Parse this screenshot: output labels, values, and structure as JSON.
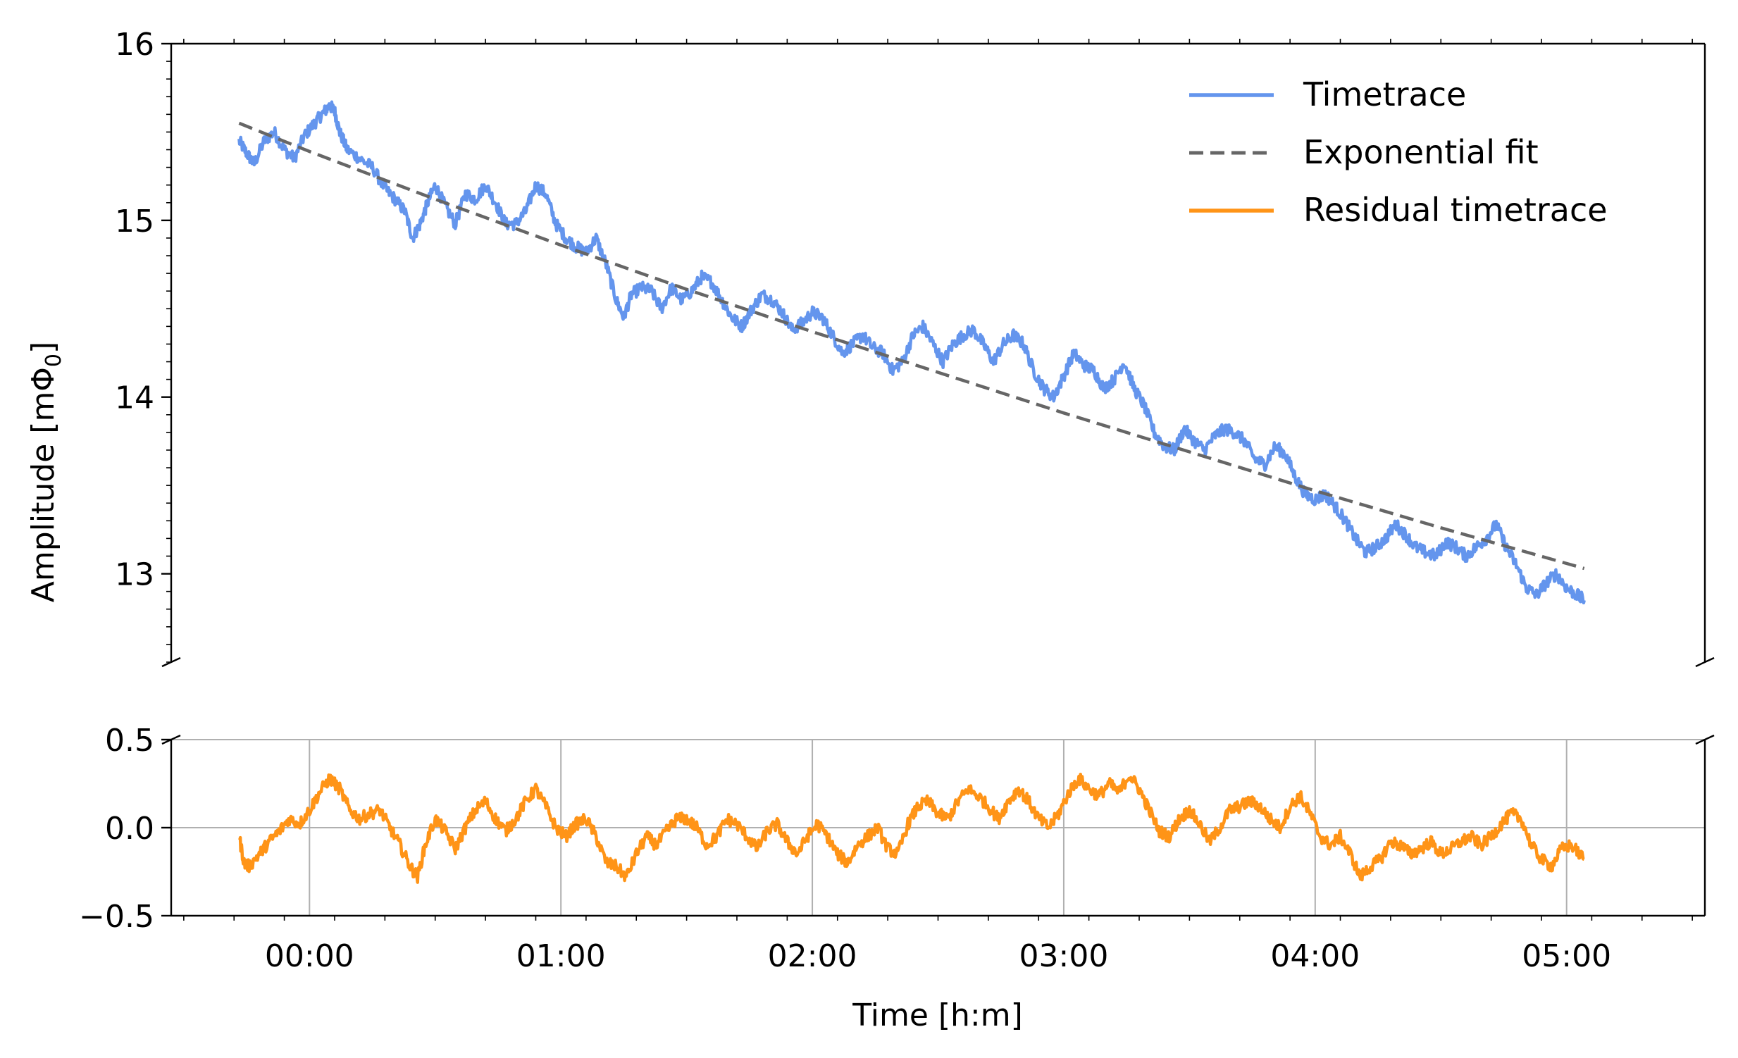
{
  "figure": {
    "colors": {
      "timetrace": "#6495ED",
      "fit": "#666666",
      "residual": "#FF9417",
      "grid": "#b0b0b0",
      "axis": "#000000"
    }
  },
  "chart_data": [
    {
      "type": "line",
      "panel": "top",
      "ylabel": "Amplitude [mΦ0]",
      "ylabel_parts": {
        "main": "Amplitude [mΦ",
        "sub": "0",
        "close": "]"
      },
      "ylim": [
        12.5,
        16.0
      ],
      "yticks": [
        13,
        14,
        15,
        16
      ],
      "ytick_labels": [
        "13",
        "14",
        "15",
        "16"
      ],
      "xlim": [
        "-00:33",
        "05:33"
      ],
      "grid": false,
      "legend_position": "top-right",
      "broken_axis": "bottom",
      "series": [
        {
          "name": "Timetrace",
          "style": "solid",
          "x_hours": [
            -0.28,
            -0.25,
            -0.22,
            -0.18,
            -0.14,
            -0.1,
            -0.06,
            -0.02,
            0.02,
            0.05,
            0.08,
            0.1,
            0.12,
            0.15,
            0.2,
            0.25,
            0.3,
            0.34,
            0.38,
            0.41,
            0.44,
            0.47,
            0.5,
            0.54,
            0.58,
            0.62,
            0.66,
            0.7,
            0.74,
            0.78,
            0.82,
            0.86,
            0.9,
            0.94,
            0.98,
            1.02,
            1.06,
            1.1,
            1.14,
            1.18,
            1.22,
            1.25,
            1.28,
            1.32,
            1.36,
            1.4,
            1.44,
            1.48,
            1.52,
            1.56,
            1.6,
            1.64,
            1.68,
            1.72,
            1.76,
            1.8,
            1.84,
            1.88,
            1.92,
            1.96,
            2.0,
            2.04,
            2.08,
            2.12,
            2.16,
            2.2,
            2.24,
            2.28,
            2.32,
            2.36,
            2.4,
            2.44,
            2.48,
            2.52,
            2.56,
            2.6,
            2.64,
            2.68,
            2.72,
            2.76,
            2.8,
            2.84,
            2.88,
            2.92,
            2.96,
            3.0,
            3.04,
            3.08,
            3.12,
            3.16,
            3.2,
            3.24,
            3.28,
            3.32,
            3.36,
            3.4,
            3.44,
            3.48,
            3.52,
            3.56,
            3.6,
            3.64,
            3.68,
            3.72,
            3.76,
            3.8,
            3.84,
            3.88,
            3.92,
            3.96,
            4.0,
            4.04,
            4.08,
            4.12,
            4.16,
            4.2,
            4.24,
            4.28,
            4.32,
            4.36,
            4.4,
            4.44,
            4.48,
            4.52,
            4.56,
            4.6,
            4.64,
            4.68,
            4.72,
            4.76,
            4.8,
            4.84,
            4.88,
            4.92,
            4.96,
            5.0,
            5.04,
            5.07
          ],
          "y": [
            15.45,
            15.38,
            15.32,
            15.45,
            15.5,
            15.4,
            15.35,
            15.48,
            15.55,
            15.6,
            15.65,
            15.62,
            15.5,
            15.4,
            15.35,
            15.3,
            15.18,
            15.12,
            15.05,
            14.9,
            14.98,
            15.1,
            15.2,
            15.08,
            14.98,
            15.15,
            15.12,
            15.2,
            15.1,
            14.98,
            14.98,
            15.05,
            15.2,
            15.15,
            14.98,
            14.9,
            14.85,
            14.82,
            14.9,
            14.75,
            14.55,
            14.45,
            14.58,
            14.62,
            14.6,
            14.5,
            14.62,
            14.55,
            14.6,
            14.68,
            14.65,
            14.55,
            14.45,
            14.4,
            14.5,
            14.58,
            14.55,
            14.48,
            14.38,
            14.42,
            14.48,
            14.45,
            14.35,
            14.25,
            14.3,
            14.35,
            14.28,
            14.25,
            14.15,
            14.2,
            14.35,
            14.4,
            14.3,
            14.2,
            14.3,
            14.35,
            14.38,
            14.3,
            14.2,
            14.3,
            14.35,
            14.3,
            14.15,
            14.05,
            14.0,
            14.12,
            14.25,
            14.18,
            14.15,
            14.05,
            14.1,
            14.2,
            14.05,
            13.95,
            13.8,
            13.72,
            13.7,
            13.82,
            13.75,
            13.7,
            13.78,
            13.82,
            13.8,
            13.75,
            13.65,
            13.62,
            13.72,
            13.68,
            13.55,
            13.45,
            13.42,
            13.45,
            13.38,
            13.3,
            13.2,
            13.12,
            13.15,
            13.2,
            13.28,
            13.22,
            13.15,
            13.12,
            13.1,
            13.18,
            13.15,
            13.1,
            13.15,
            13.2,
            13.28,
            13.15,
            13.05,
            12.92,
            12.88,
            12.95,
            13.0,
            12.92,
            12.88,
            12.85
          ],
          "noise": 0.035
        },
        {
          "name": "Exponential fit",
          "style": "dashed",
          "x_hours": [
            -0.28,
            0.0,
            0.5,
            1.0,
            1.5,
            2.0,
            2.5,
            3.0,
            3.5,
            4.0,
            4.5,
            5.07
          ],
          "y": [
            15.55,
            15.39,
            15.12,
            14.86,
            14.61,
            14.37,
            14.14,
            13.91,
            13.69,
            13.47,
            13.26,
            13.03
          ]
        }
      ]
    },
    {
      "type": "line",
      "panel": "bottom",
      "xlabel": "Time [h:m]",
      "ylim": [
        -0.5,
        0.5
      ],
      "yticks": [
        -0.5,
        0.0,
        0.5
      ],
      "ytick_labels": [
        "−0.5",
        "0.0",
        "0.5"
      ],
      "xlim": [
        "-00:33",
        "05:33"
      ],
      "xticks_hours": [
        0,
        1,
        2,
        3,
        4,
        5
      ],
      "xtick_labels": [
        "00:00",
        "01:00",
        "02:00",
        "03:00",
        "04:00",
        "05:00"
      ],
      "grid": true,
      "broken_axis": "top",
      "series": [
        {
          "name": "Residual timetrace",
          "style": "solid",
          "x_hours": [
            -0.28,
            -0.26,
            -0.24,
            -0.2,
            -0.16,
            -0.12,
            -0.08,
            -0.04,
            0.0,
            0.04,
            0.08,
            0.12,
            0.16,
            0.2,
            0.24,
            0.28,
            0.32,
            0.36,
            0.4,
            0.43,
            0.46,
            0.5,
            0.54,
            0.58,
            0.62,
            0.66,
            0.7,
            0.74,
            0.78,
            0.82,
            0.86,
            0.9,
            0.94,
            0.98,
            1.02,
            1.06,
            1.1,
            1.14,
            1.18,
            1.22,
            1.26,
            1.3,
            1.34,
            1.38,
            1.42,
            1.46,
            1.5,
            1.54,
            1.58,
            1.62,
            1.66,
            1.7,
            1.74,
            1.78,
            1.82,
            1.86,
            1.9,
            1.94,
            1.98,
            2.02,
            2.06,
            2.1,
            2.14,
            2.18,
            2.22,
            2.26,
            2.3,
            2.34,
            2.38,
            2.42,
            2.46,
            2.5,
            2.54,
            2.58,
            2.62,
            2.66,
            2.7,
            2.74,
            2.78,
            2.82,
            2.86,
            2.9,
            2.94,
            2.98,
            3.02,
            3.06,
            3.1,
            3.14,
            3.18,
            3.22,
            3.26,
            3.3,
            3.34,
            3.38,
            3.42,
            3.46,
            3.5,
            3.54,
            3.58,
            3.62,
            3.66,
            3.7,
            3.74,
            3.78,
            3.82,
            3.86,
            3.9,
            3.94,
            3.98,
            4.02,
            4.06,
            4.1,
            4.14,
            4.18,
            4.22,
            4.26,
            4.3,
            4.34,
            4.38,
            4.42,
            4.46,
            4.5,
            4.54,
            4.58,
            4.62,
            4.66,
            4.7,
            4.74,
            4.78,
            4.82,
            4.86,
            4.9,
            4.94,
            4.98,
            5.02,
            5.07
          ],
          "y": [
            -0.05,
            -0.2,
            -0.22,
            -0.15,
            -0.08,
            -0.02,
            0.05,
            0.02,
            0.1,
            0.2,
            0.28,
            0.22,
            0.1,
            0.05,
            0.08,
            0.1,
            0.0,
            -0.1,
            -0.22,
            -0.28,
            -0.1,
            0.05,
            -0.02,
            -0.12,
            0.0,
            0.1,
            0.15,
            0.05,
            -0.02,
            0.05,
            0.15,
            0.22,
            0.12,
            0.0,
            -0.05,
            0.02,
            0.05,
            -0.05,
            -0.2,
            -0.22,
            -0.28,
            -0.15,
            -0.05,
            -0.1,
            -0.02,
            0.05,
            0.05,
            0.0,
            -0.1,
            -0.05,
            0.05,
            0.02,
            -0.05,
            -0.12,
            -0.02,
            0.02,
            -0.08,
            -0.15,
            -0.05,
            0.02,
            -0.05,
            -0.15,
            -0.2,
            -0.1,
            -0.05,
            0.0,
            -0.12,
            -0.15,
            0.02,
            0.12,
            0.15,
            0.08,
            0.05,
            0.15,
            0.22,
            0.18,
            0.12,
            0.05,
            0.15,
            0.22,
            0.15,
            0.05,
            0.0,
            0.08,
            0.2,
            0.28,
            0.22,
            0.18,
            0.25,
            0.2,
            0.3,
            0.22,
            0.1,
            -0.02,
            -0.05,
            0.05,
            0.1,
            0.02,
            -0.08,
            0.0,
            0.1,
            0.12,
            0.15,
            0.12,
            0.05,
            0.0,
            0.12,
            0.18,
            0.08,
            -0.05,
            -0.1,
            -0.05,
            -0.15,
            -0.28,
            -0.22,
            -0.18,
            -0.08,
            -0.1,
            -0.15,
            -0.12,
            -0.08,
            -0.15,
            -0.12,
            -0.08,
            -0.05,
            -0.1,
            -0.05,
            0.02,
            0.08,
            0.05,
            -0.1,
            -0.18,
            -0.22,
            -0.12,
            -0.1,
            -0.18
          ],
          "noise": 0.035
        }
      ]
    }
  ]
}
